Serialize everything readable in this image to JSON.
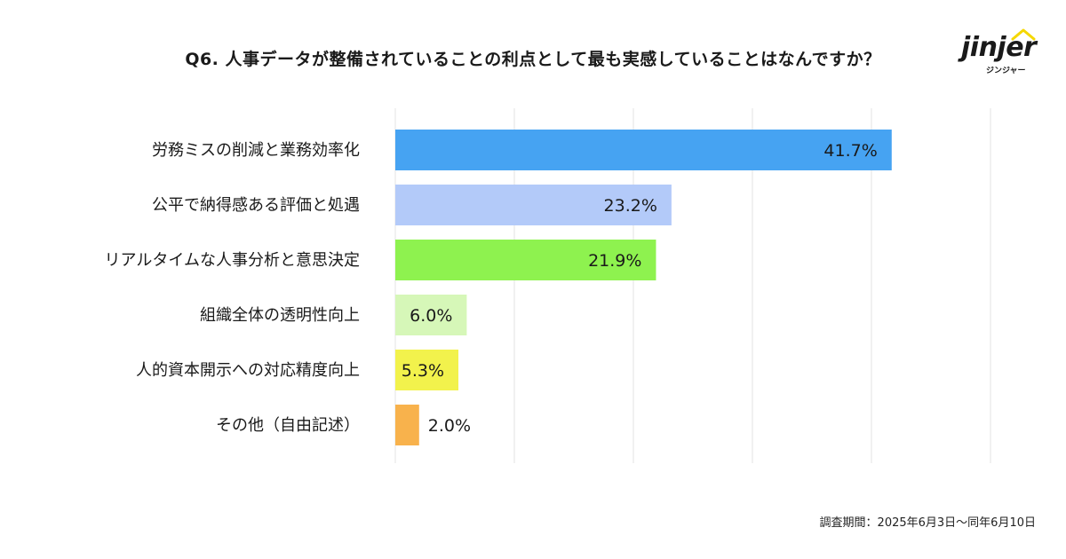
{
  "title": "Q6. 人事データが整備されていることの利点として最も実感していることはなんですか？",
  "logo": {
    "word": "jinjer",
    "sub": "ジンジャー"
  },
  "footnote": "調査期間：2025年6月3日〜同年6月10日",
  "colors": {
    "bars": [
      "#46a3f2",
      "#b3caf9",
      "#8ef24f",
      "#d6f7b8",
      "#f2f24c",
      "#f8b24c"
    ],
    "grid": "#e3e3e3",
    "logo_accent": "#f5d800"
  },
  "chart_data": {
    "type": "bar",
    "orientation": "horizontal",
    "categories": [
      "労務ミスの削減と業務効率化",
      "公平で納得感ある評価と処遇",
      "リアルタイムな人事分析と意思決定",
      "組織全体の透明性向上",
      "人的資本開示への対応精度向上",
      "その他（自由記述）"
    ],
    "values": [
      41.7,
      23.2,
      21.9,
      6.0,
      5.3,
      2.0
    ],
    "value_labels": [
      "41.7%",
      "23.2%",
      "21.9%",
      "6.0%",
      "5.3%",
      "2.0%"
    ],
    "xlim": [
      0,
      50
    ],
    "grid": true,
    "legend": "none"
  }
}
